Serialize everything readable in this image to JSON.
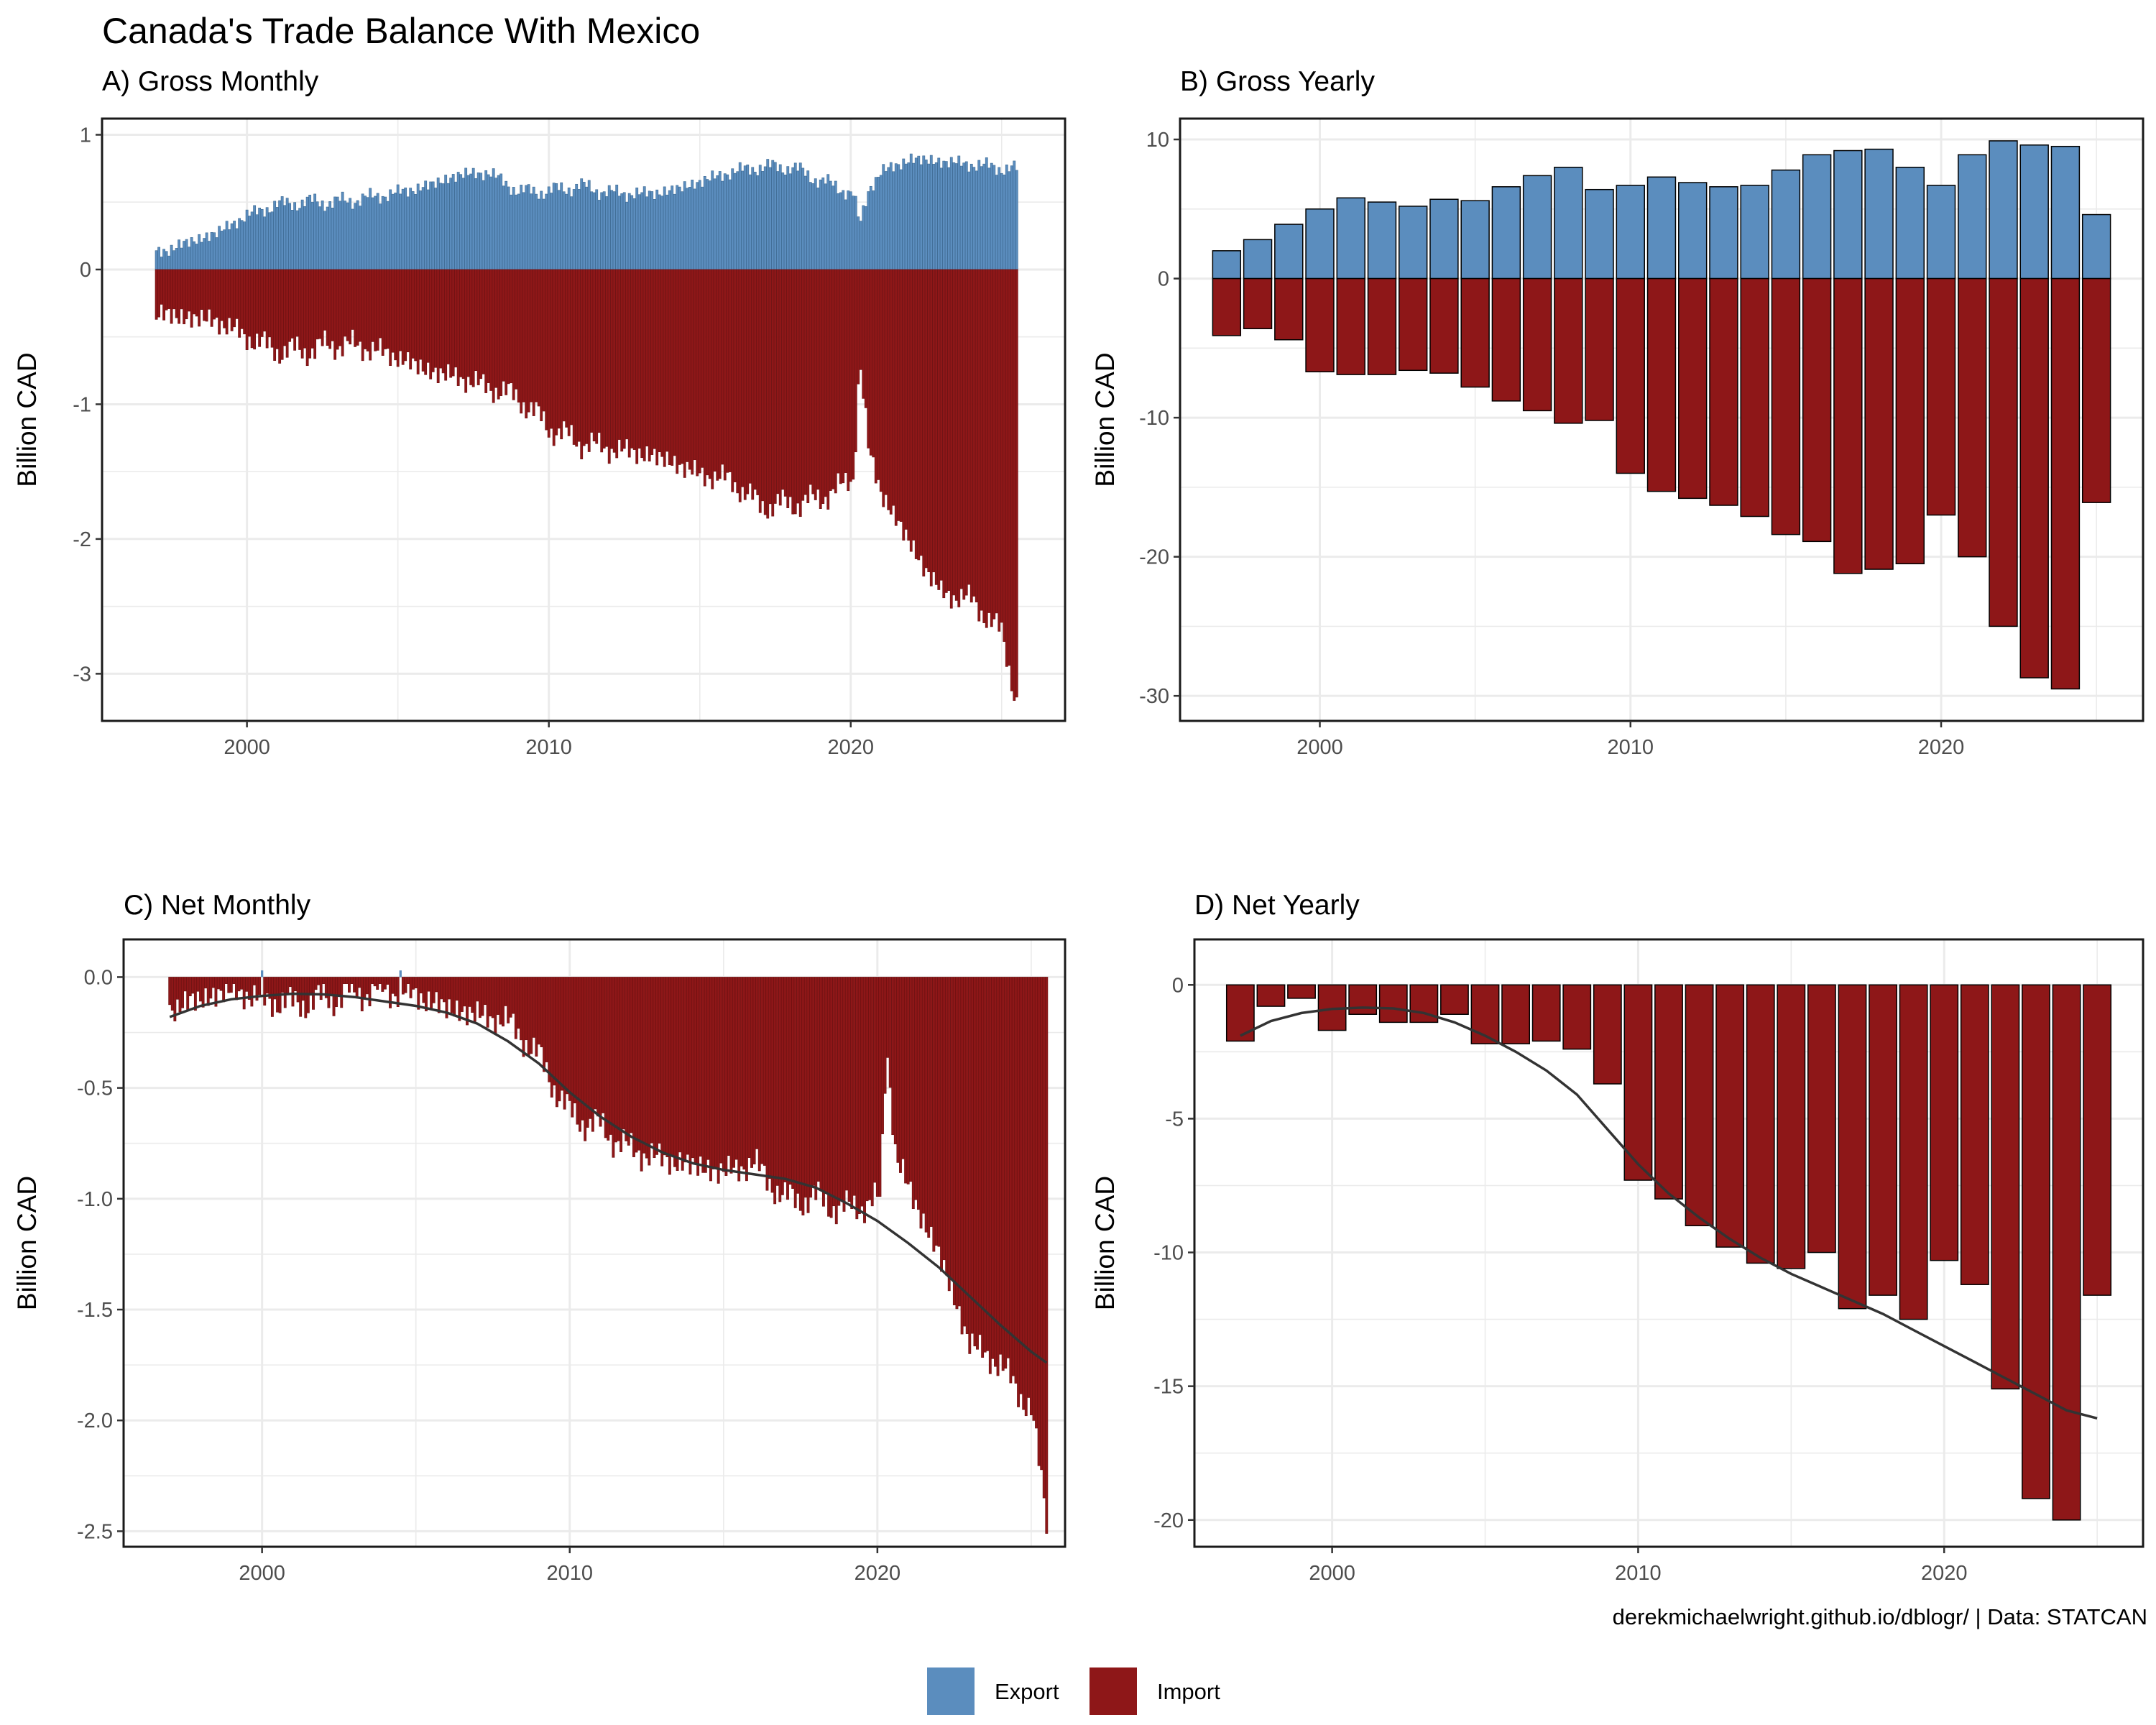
{
  "title": "Canada's Trade Balance With Mexico",
  "caption": "derekmichaelwright.github.io/dblogr/ | Data: STATCAN",
  "colors": {
    "export": "#5B8DBE",
    "import": "#8E1718",
    "trend": "#333333",
    "grid": "#EBEBEB"
  },
  "legend": {
    "position": "bottom",
    "items": [
      {
        "label": "Export",
        "color": "#5B8DBE"
      },
      {
        "label": "Import",
        "color": "#8E1718"
      }
    ]
  },
  "chart_data": [
    {
      "id": "A",
      "type": "bar",
      "title": "A) Gross Monthly",
      "ylabel": "Billion CAD",
      "xlim": [
        1995.2,
        2027.1
      ],
      "ylim": [
        -3.35,
        1.12
      ],
      "xticks": [
        2000,
        2010,
        2020
      ],
      "yticks": [
        1,
        0,
        -1,
        -2,
        -3
      ],
      "ytick_labels": [
        "1",
        "0",
        "-1",
        "-2",
        "-3"
      ],
      "monthly": true,
      "start_year": 1997,
      "end_year": 2025.5,
      "export_knots": [
        [
          1997,
          0.12
        ],
        [
          1999,
          0.27
        ],
        [
          2000,
          0.4
        ],
        [
          2001,
          0.48
        ],
        [
          2002,
          0.5
        ],
        [
          2003,
          0.5
        ],
        [
          2004,
          0.53
        ],
        [
          2005,
          0.57
        ],
        [
          2006,
          0.62
        ],
        [
          2007,
          0.7
        ],
        [
          2008,
          0.72
        ],
        [
          2009,
          0.58
        ],
        [
          2010,
          0.58
        ],
        [
          2011,
          0.62
        ],
        [
          2012,
          0.57
        ],
        [
          2013,
          0.56
        ],
        [
          2014,
          0.58
        ],
        [
          2015,
          0.65
        ],
        [
          2016,
          0.72
        ],
        [
          2017,
          0.76
        ],
        [
          2018,
          0.76
        ],
        [
          2019,
          0.66
        ],
        [
          2020.1,
          0.56
        ],
        [
          2020.3,
          0.32
        ],
        [
          2020.6,
          0.6
        ],
        [
          2021,
          0.72
        ],
        [
          2022,
          0.82
        ],
        [
          2023,
          0.8
        ],
        [
          2024,
          0.78
        ],
        [
          2025.5,
          0.74
        ]
      ],
      "import_knots": [
        [
          1997,
          -0.33
        ],
        [
          1999,
          -0.38
        ],
        [
          2000,
          -0.5
        ],
        [
          2001,
          -0.6
        ],
        [
          2002,
          -0.6
        ],
        [
          2003,
          -0.55
        ],
        [
          2004,
          -0.58
        ],
        [
          2005,
          -0.65
        ],
        [
          2006,
          -0.75
        ],
        [
          2007,
          -0.8
        ],
        [
          2008,
          -0.87
        ],
        [
          2009,
          -0.95
        ],
        [
          2010,
          -1.17
        ],
        [
          2011,
          -1.28
        ],
        [
          2012,
          -1.33
        ],
        [
          2013,
          -1.36
        ],
        [
          2014,
          -1.42
        ],
        [
          2015,
          -1.52
        ],
        [
          2016,
          -1.56
        ],
        [
          2017,
          -1.75
        ],
        [
          2018,
          -1.74
        ],
        [
          2019,
          -1.7
        ],
        [
          2020.1,
          -1.55
        ],
        [
          2020.3,
          -0.65
        ],
        [
          2020.6,
          -1.35
        ],
        [
          2021,
          -1.65
        ],
        [
          2022,
          -2.05
        ],
        [
          2023,
          -2.4
        ],
        [
          2024,
          -2.45
        ],
        [
          2025,
          -2.7
        ],
        [
          2025.5,
          -3.2
        ]
      ]
    },
    {
      "id": "B",
      "type": "bar",
      "title": "B) Gross Yearly",
      "ylabel": "Billion CAD",
      "xlim": [
        1995.5,
        2026.5
      ],
      "ylim": [
        -31.8,
        11.5
      ],
      "xticks": [
        2000,
        2010,
        2020
      ],
      "yticks": [
        10,
        0,
        -10,
        -20,
        -30
      ],
      "ytick_labels": [
        "10",
        "0",
        "-10",
        "-20",
        "-30"
      ],
      "years": [
        1997,
        1998,
        1999,
        2000,
        2001,
        2002,
        2003,
        2004,
        2005,
        2006,
        2007,
        2008,
        2009,
        2010,
        2011,
        2012,
        2013,
        2014,
        2015,
        2016,
        2017,
        2018,
        2019,
        2020,
        2021,
        2022,
        2023,
        2024,
        2025
      ],
      "exports": [
        2.0,
        2.8,
        3.9,
        5.0,
        5.8,
        5.5,
        5.2,
        5.7,
        5.6,
        6.6,
        7.4,
        8.0,
        6.4,
        6.7,
        7.3,
        6.9,
        6.6,
        6.7,
        7.8,
        8.9,
        9.2,
        9.3,
        8.0,
        6.7,
        8.9,
        9.9,
        9.6,
        9.5,
        4.6
      ],
      "imports": [
        -4.1,
        -3.6,
        -4.4,
        -6.7,
        -6.9,
        -6.9,
        -6.6,
        -6.8,
        -7.8,
        -8.8,
        -9.5,
        -10.4,
        -10.2,
        -14.0,
        -15.3,
        -15.8,
        -16.3,
        -17.1,
        -18.4,
        -18.9,
        -21.2,
        -20.9,
        -20.5,
        -17.0,
        -20.0,
        -25.0,
        -28.7,
        -29.5,
        -16.1
      ]
    },
    {
      "id": "C",
      "type": "bar",
      "title": "C) Net Monthly",
      "ylabel": "Billion CAD",
      "xlim": [
        1995.5,
        2026.1
      ],
      "ylim": [
        -2.57,
        0.17
      ],
      "xticks": [
        2000,
        2010,
        2020
      ],
      "yticks": [
        0.0,
        -0.5,
        -1.0,
        -1.5,
        -2.0,
        -2.5
      ],
      "ytick_labels": [
        "0.0",
        "-0.5",
        "-1.0",
        "-1.5",
        "-2.0",
        "-2.5"
      ],
      "monthly": true,
      "start_year": 1997,
      "end_year": 2025.5,
      "net_knots": [
        [
          1997,
          -0.14
        ],
        [
          1999,
          -0.06
        ],
        [
          2000,
          -0.1
        ],
        [
          2001,
          -0.12
        ],
        [
          2002,
          -0.1
        ],
        [
          2003,
          -0.07
        ],
        [
          2004,
          -0.06
        ],
        [
          2005,
          -0.08
        ],
        [
          2006,
          -0.14
        ],
        [
          2007,
          -0.17
        ],
        [
          2008,
          -0.2
        ],
        [
          2009,
          -0.36
        ],
        [
          2010,
          -0.62
        ],
        [
          2011,
          -0.68
        ],
        [
          2012,
          -0.78
        ],
        [
          2013,
          -0.82
        ],
        [
          2014,
          -0.85
        ],
        [
          2015,
          -0.88
        ],
        [
          2016,
          -0.84
        ],
        [
          2017,
          -1.0
        ],
        [
          2018,
          -1.0
        ],
        [
          2019,
          -1.05
        ],
        [
          2020.1,
          -1.0
        ],
        [
          2020.3,
          -0.3
        ],
        [
          2020.6,
          -0.8
        ],
        [
          2021,
          -0.95
        ],
        [
          2022,
          -1.25
        ],
        [
          2023,
          -1.65
        ],
        [
          2024,
          -1.75
        ],
        [
          2025,
          -1.95
        ],
        [
          2025.5,
          -2.45
        ]
      ],
      "trend": [
        [
          1997,
          -0.18
        ],
        [
          1998,
          -0.13
        ],
        [
          1999,
          -0.1
        ],
        [
          2000,
          -0.085
        ],
        [
          2001,
          -0.075
        ],
        [
          2002,
          -0.078
        ],
        [
          2003,
          -0.09
        ],
        [
          2004,
          -0.11
        ],
        [
          2005,
          -0.13
        ],
        [
          2006,
          -0.16
        ],
        [
          2007,
          -0.21
        ],
        [
          2008,
          -0.29
        ],
        [
          2009,
          -0.39
        ],
        [
          2010,
          -0.52
        ],
        [
          2011,
          -0.63
        ],
        [
          2012,
          -0.72
        ],
        [
          2013,
          -0.79
        ],
        [
          2014,
          -0.84
        ],
        [
          2015,
          -0.87
        ],
        [
          2016,
          -0.89
        ],
        [
          2017,
          -0.91
        ],
        [
          2018,
          -0.95
        ],
        [
          2019,
          -1.02
        ],
        [
          2020,
          -1.1
        ],
        [
          2021,
          -1.2
        ],
        [
          2022,
          -1.31
        ],
        [
          2023,
          -1.44
        ],
        [
          2024,
          -1.57
        ],
        [
          2025,
          -1.69
        ],
        [
          2025.5,
          -1.74
        ]
      ]
    },
    {
      "id": "D",
      "type": "bar",
      "title": "D) Net Yearly",
      "ylabel": "Billion CAD",
      "xlim": [
        1995.5,
        2026.5
      ],
      "ylim": [
        -21.0,
        1.7
      ],
      "xticks": [
        2000,
        2010,
        2020
      ],
      "yticks": [
        0,
        -5,
        -10,
        -15,
        -20
      ],
      "ytick_labels": [
        "0",
        "-5",
        "-10",
        "-15",
        "-20"
      ],
      "years": [
        1997,
        1998,
        1999,
        2000,
        2001,
        2002,
        2003,
        2004,
        2005,
        2006,
        2007,
        2008,
        2009,
        2010,
        2011,
        2012,
        2013,
        2014,
        2015,
        2016,
        2017,
        2018,
        2019,
        2020,
        2021,
        2022,
        2023,
        2024,
        2025
      ],
      "net": [
        -2.1,
        -0.8,
        -0.5,
        -1.7,
        -1.1,
        -1.4,
        -1.4,
        -1.1,
        -2.2,
        -2.2,
        -2.1,
        -2.4,
        -3.7,
        -7.3,
        -8.0,
        -9.0,
        -9.8,
        -10.4,
        -10.6,
        -10.0,
        -12.1,
        -11.6,
        -12.5,
        -10.3,
        -11.2,
        -15.1,
        -19.2,
        -20.0,
        -11.6
      ],
      "trend": [
        [
          1997,
          -1.9
        ],
        [
          1998,
          -1.35
        ],
        [
          1999,
          -1.05
        ],
        [
          2000,
          -0.9
        ],
        [
          2001,
          -0.85
        ],
        [
          2002,
          -0.88
        ],
        [
          2003,
          -1.05
        ],
        [
          2004,
          -1.4
        ],
        [
          2005,
          -1.9
        ],
        [
          2006,
          -2.5
        ],
        [
          2007,
          -3.2
        ],
        [
          2008,
          -4.1
        ],
        [
          2009,
          -5.4
        ],
        [
          2010,
          -6.7
        ],
        [
          2011,
          -7.8
        ],
        [
          2012,
          -8.7
        ],
        [
          2013,
          -9.5
        ],
        [
          2014,
          -10.2
        ],
        [
          2015,
          -10.8
        ],
        [
          2016,
          -11.3
        ],
        [
          2017,
          -11.8
        ],
        [
          2018,
          -12.3
        ],
        [
          2019,
          -12.9
        ],
        [
          2020,
          -13.5
        ],
        [
          2021,
          -14.1
        ],
        [
          2022,
          -14.7
        ],
        [
          2023,
          -15.3
        ],
        [
          2024,
          -15.9
        ],
        [
          2025,
          -16.2
        ]
      ]
    }
  ]
}
